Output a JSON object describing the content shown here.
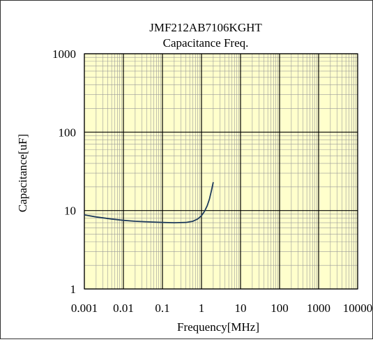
{
  "chart_data": {
    "type": "line",
    "title": "JMF212AB7106KGHT",
    "subtitle": "Capacitance Freq.",
    "xlabel": "Frequency[MHz]",
    "ylabel": "Capacitance[uF]",
    "x_scale": "log",
    "y_scale": "log",
    "xlim": [
      0.001,
      10000
    ],
    "ylim": [
      1,
      1000
    ],
    "x_ticks": [
      "0.001",
      "0.01",
      "0.1",
      "1",
      "10",
      "100",
      "1000",
      "10000"
    ],
    "y_ticks": [
      "1",
      "10",
      "100",
      "1000"
    ],
    "grid": true,
    "plot_background": "#ffffcc",
    "line_color": "#1f3b5c",
    "series": [
      {
        "x": [
          0.001,
          0.002,
          0.005,
          0.01,
          0.02,
          0.05,
          0.1,
          0.2,
          0.4,
          0.6,
          0.8,
          1.0,
          1.2,
          1.4,
          1.6,
          1.8,
          2.0
        ],
        "y": [
          8.8,
          8.3,
          7.8,
          7.5,
          7.3,
          7.15,
          7.05,
          7.0,
          7.05,
          7.3,
          7.8,
          8.6,
          9.8,
          11.5,
          14.0,
          18.0,
          23.0
        ]
      }
    ]
  }
}
